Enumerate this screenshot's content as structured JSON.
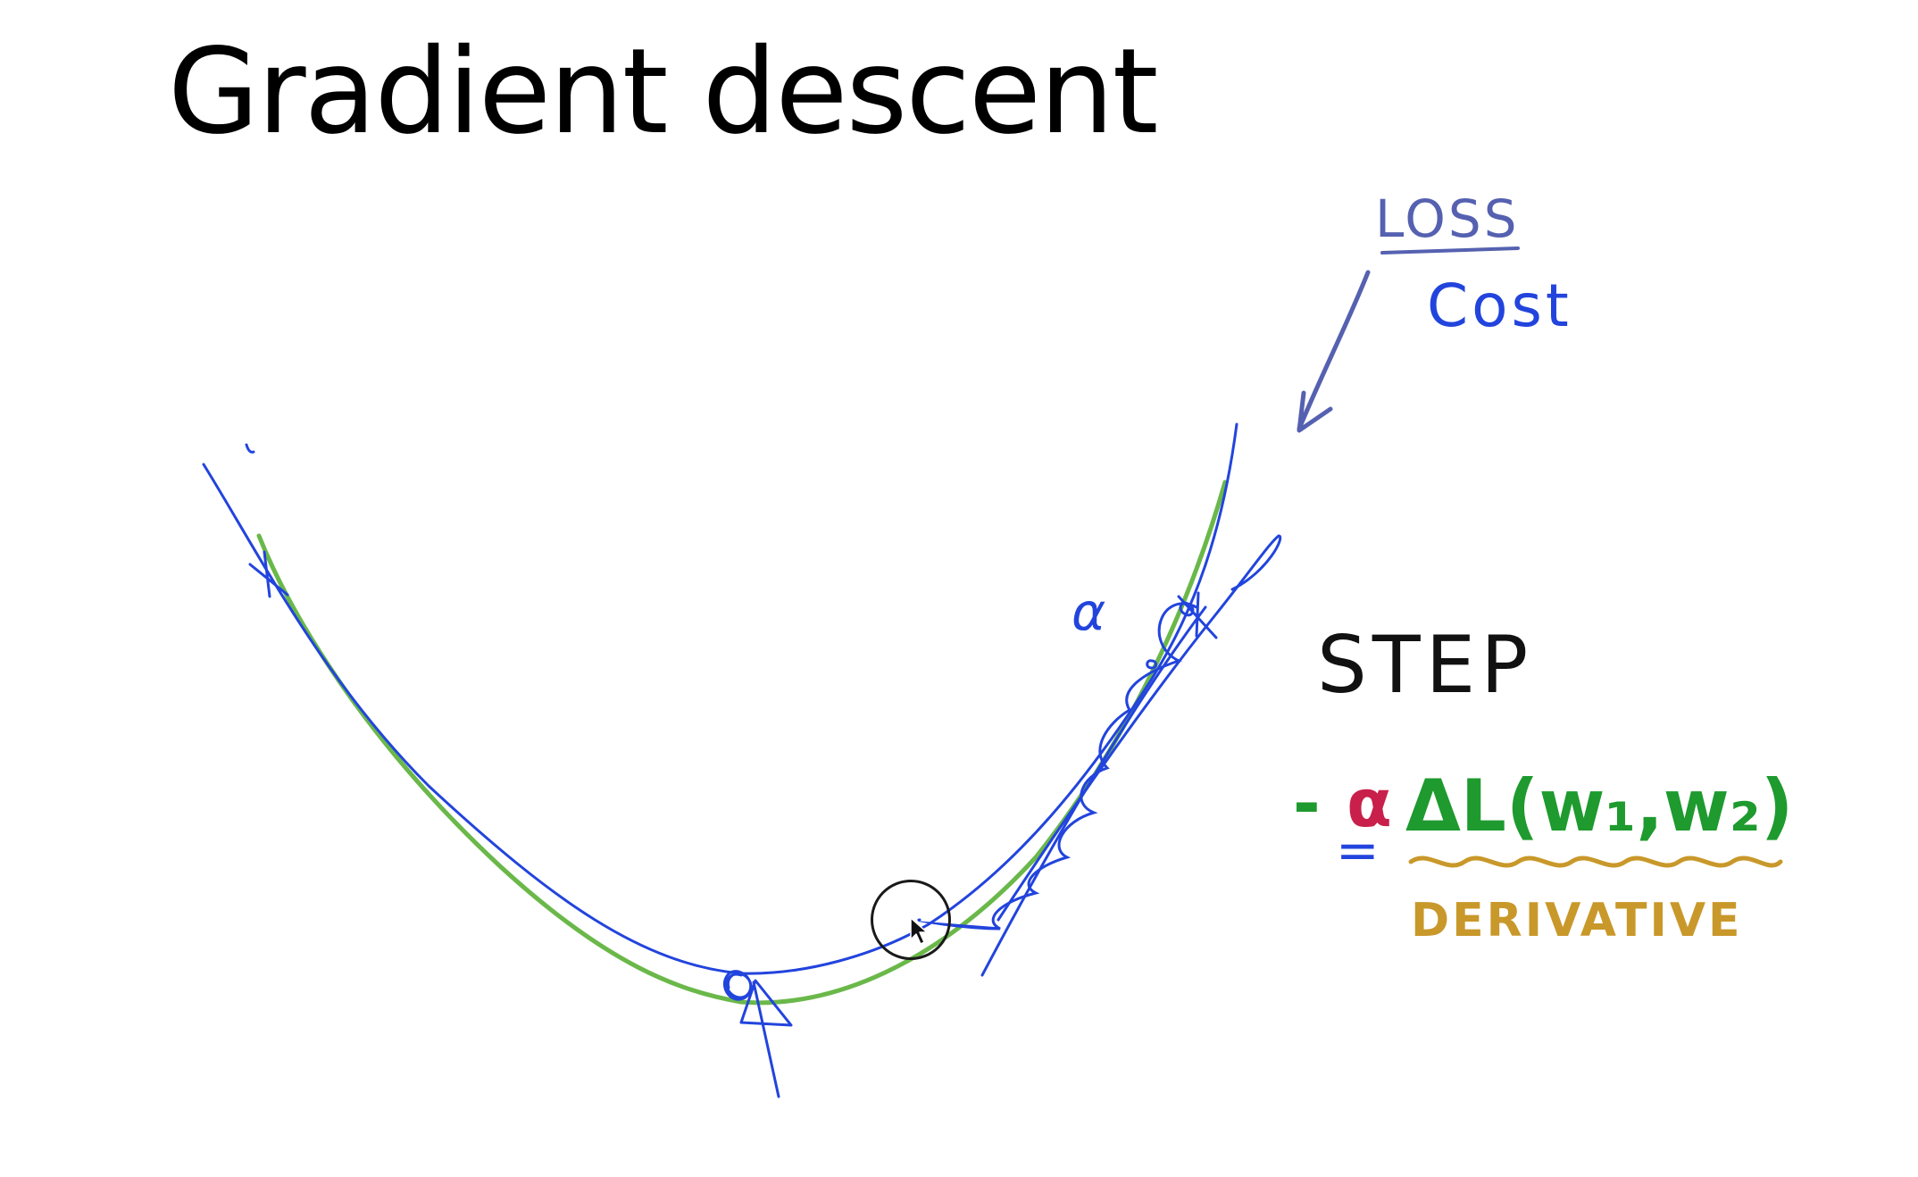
{
  "slide": {
    "title": "Gradient descent"
  },
  "annotations": {
    "loss_label": "LOSS",
    "cost_label": "Cost",
    "alpha_label": "α",
    "step_label": "STEP",
    "formula_minus": "-",
    "formula_alpha": "α",
    "formula_gradient": "ΔL(w₁,w₂)",
    "formula_underline": "=",
    "derivative_label": "DERIVATIVE"
  },
  "colors": {
    "ink_blue": "#2244dd",
    "ink_purple_blue": "#5561b0",
    "ink_green": "#1e9a2e",
    "ink_curve_green": "#6ab84a",
    "ink_red": "#c8204a",
    "ink_gold": "#c9982a",
    "ink_black": "#111111"
  }
}
